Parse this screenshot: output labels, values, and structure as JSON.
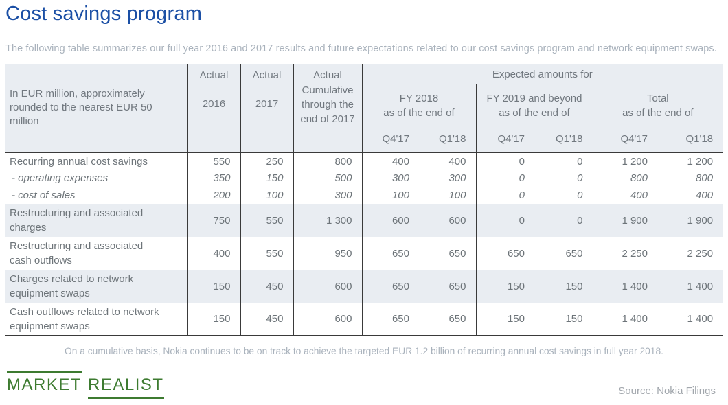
{
  "colors": {
    "title_blue": "#1b4fa5",
    "muted_text": "#a9b2bc",
    "table_text": "#6d7479",
    "header_text": "#71787f",
    "shade_bg": "#e9edf2",
    "line_dark": "#3a3a3a",
    "logo_green": "#3d7b30",
    "source_gray": "#a2a7ad"
  },
  "header": {
    "title": "Cost savings program",
    "subtitle": "The following table summarizes our full year 2016 and 2017 results and future expectations related to our cost savings program and network equipment swaps."
  },
  "table_header": {
    "corner": "In EUR million, approximately rounded to the nearest EUR 50 million",
    "actual": "Actual",
    "year_2016": "2016",
    "year_2017": "2017",
    "cumulative": "Cumulative through the end of 2017",
    "expected": "Expected amounts for",
    "groups": [
      {
        "title": "FY 2018",
        "subtitle": "as of the end of",
        "col1": "Q4'17",
        "col2": "Q1'18"
      },
      {
        "title": "FY 2019 and beyond",
        "subtitle": "as of the end of",
        "col1": "Q4'17",
        "col2": "Q1'18"
      },
      {
        "title": "Total",
        "subtitle": "as of the end of",
        "col1": "Q4'17",
        "col2": "Q1'18"
      }
    ]
  },
  "chart_data": {
    "type": "table",
    "title": "Cost savings program",
    "columns": [
      "In EUR million, approximately rounded to the nearest EUR 50 million",
      "Actual 2016",
      "Actual 2017",
      "Actual Cumulative through the end of 2017",
      "Expected amounts for FY 2018 as of the end of Q4'17",
      "Expected amounts for FY 2018 as of the end of Q1'18",
      "Expected amounts for FY 2019 and beyond as of the end of Q4'17",
      "Expected amounts for FY 2019 and beyond as of the end of Q1'18",
      "Total as of the end of Q4'17",
      "Total as of the end of Q1'18"
    ],
    "rows": [
      {
        "label": "Recurring annual cost savings",
        "italic": false,
        "shaded": false,
        "tall": false,
        "values": [
          "550",
          "250",
          "800",
          "400",
          "400",
          "0",
          "0",
          "1 200",
          "1 200"
        ]
      },
      {
        "label": "- operating expenses",
        "italic": true,
        "shaded": false,
        "tall": false,
        "values": [
          "350",
          "150",
          "500",
          "300",
          "300",
          "0",
          "0",
          "800",
          "800"
        ]
      },
      {
        "label": "- cost of sales",
        "italic": true,
        "shaded": false,
        "tall": false,
        "values": [
          "200",
          "100",
          "300",
          "100",
          "100",
          "0",
          "0",
          "400",
          "400"
        ]
      },
      {
        "label": "Restructuring and associated charges",
        "italic": false,
        "shaded": true,
        "tall": true,
        "values": [
          "750",
          "550",
          "1 300",
          "600",
          "600",
          "0",
          "0",
          "1 900",
          "1 900"
        ]
      },
      {
        "label": "Restructuring and associated cash outflows",
        "italic": false,
        "shaded": false,
        "tall": true,
        "values": [
          "400",
          "550",
          "950",
          "650",
          "650",
          "650",
          "650",
          "2 250",
          "2 250"
        ]
      },
      {
        "label": "Charges related to network equipment swaps",
        "italic": false,
        "shaded": true,
        "tall": true,
        "values": [
          "150",
          "450",
          "600",
          "650",
          "650",
          "150",
          "150",
          "1 400",
          "1 400"
        ]
      },
      {
        "label": "Cash outflows related to network equipment swaps",
        "italic": false,
        "shaded": false,
        "tall": true,
        "values": [
          "150",
          "450",
          "600",
          "650",
          "650",
          "150",
          "150",
          "1 400",
          "1 400"
        ]
      }
    ]
  },
  "footer": {
    "note": "On a cumulative basis, Nokia continues to be on track to achieve the targeted EUR 1.2 billion of recurring annual cost savings in full year 2018.",
    "logo_word1": "MARKET",
    "logo_word2": "REALIST",
    "source": "Source: Nokia Filings"
  }
}
